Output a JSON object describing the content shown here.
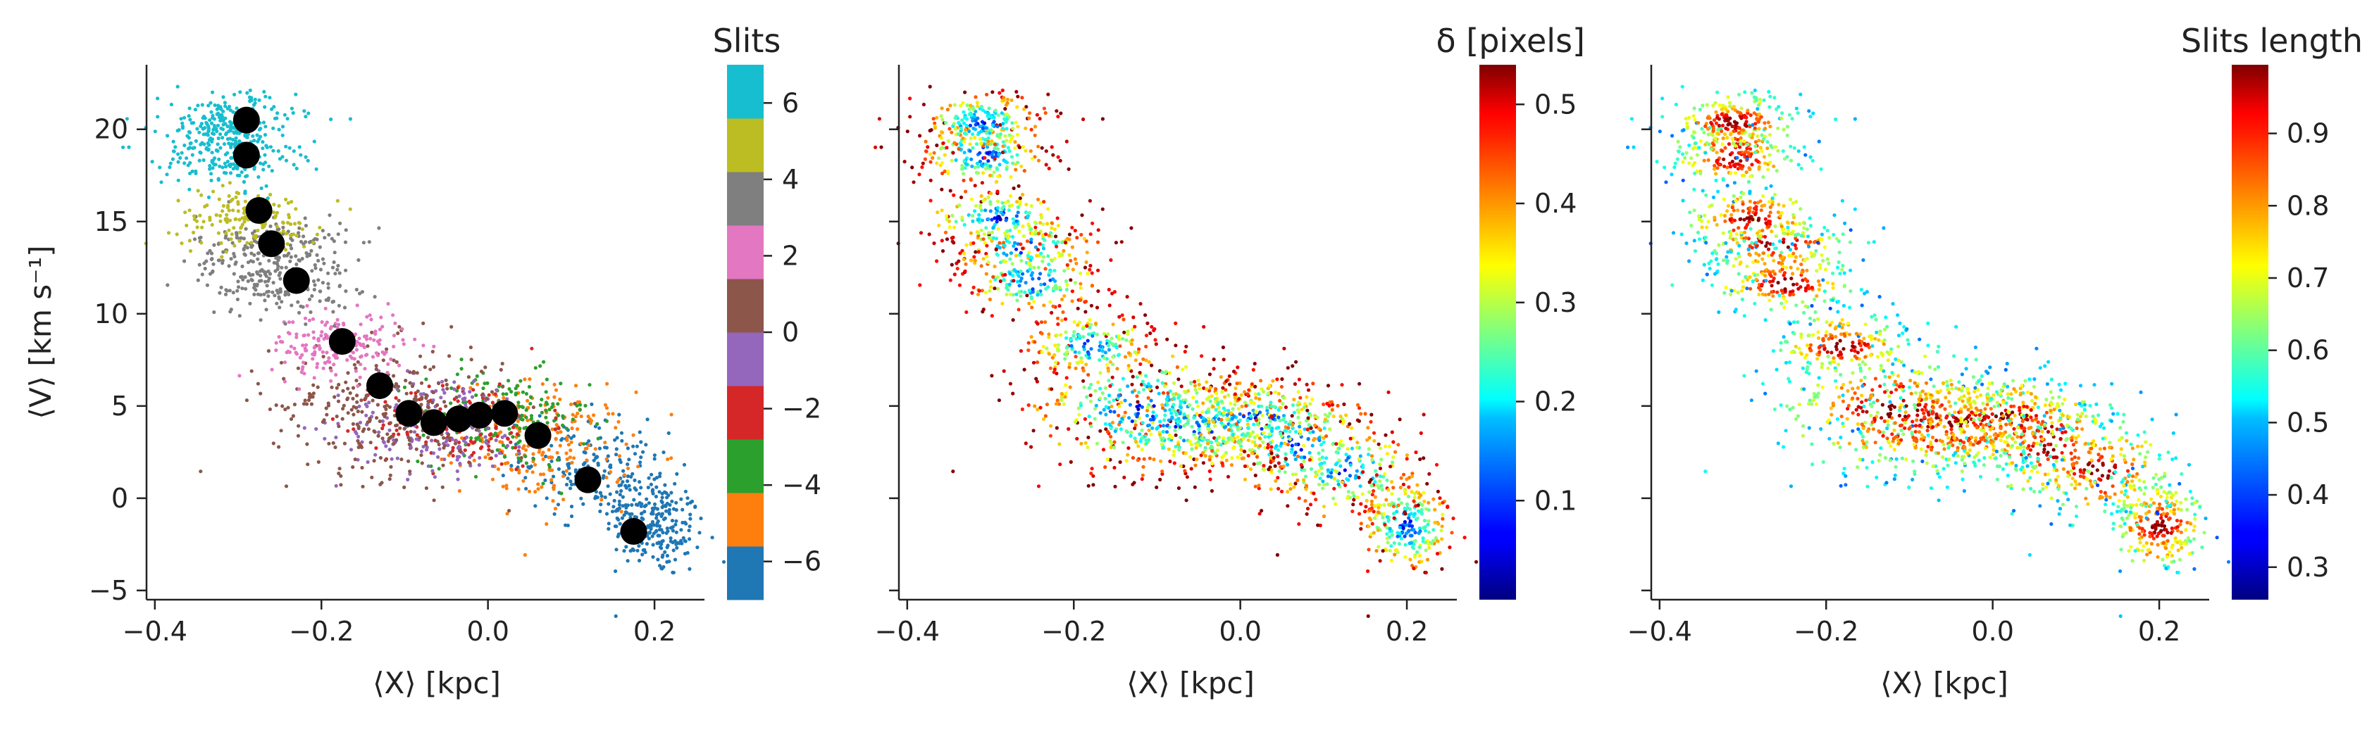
{
  "chart_data": [
    {
      "type": "scatter",
      "panel": "left",
      "xlabel": "⟨X⟩ [kpc]",
      "ylabel": "⟨V⟩ [km s⁻¹]",
      "xlim": [
        -0.41,
        0.26
      ],
      "ylim": [
        -5.5,
        23.5
      ],
      "xticks": [
        -0.4,
        -0.2,
        0.0,
        0.2
      ],
      "xtick_labels": [
        "−0.4",
        "−0.2",
        "0.0",
        "0.2"
      ],
      "yticks": [
        -5,
        0,
        5,
        10,
        15,
        20
      ],
      "ytick_labels": [
        "−5",
        "0",
        "5",
        "10",
        "15",
        "20"
      ],
      "colorbar": {
        "title": "Slits",
        "type": "discrete",
        "range": [
          -7,
          7
        ],
        "ticks": [
          -6,
          -4,
          -2,
          0,
          2,
          4,
          6
        ],
        "tick_labels": [
          "−6",
          "−4",
          "−2",
          "0",
          "2",
          "4",
          "6"
        ],
        "colors": [
          "#1f77b4",
          "#ff7f0e",
          "#2ca02c",
          "#d62728",
          "#9467bd",
          "#8c564b",
          "#e377c2",
          "#7f7f7f",
          "#bcbd22",
          "#17becf"
        ]
      },
      "clusters": [
        {
          "x": 0.2,
          "y": -1.5,
          "color": "#1f77b4",
          "n": 230,
          "sx": 0.03,
          "sy": 1.3,
          "tilt": -0.3
        },
        {
          "x": 0.13,
          "y": 1.5,
          "color": "#1f77b4",
          "n": 200,
          "sx": 0.045,
          "sy": 1.4,
          "tilt": -0.2
        },
        {
          "x": 0.07,
          "y": 3.0,
          "color": "#ff7f0e",
          "n": 220,
          "sx": 0.05,
          "sy": 1.6,
          "tilt": -0.1
        },
        {
          "x": 0.02,
          "y": 4.3,
          "color": "#2ca02c",
          "n": 200,
          "sx": 0.05,
          "sy": 1.3,
          "tilt": -0.05
        },
        {
          "x": -0.03,
          "y": 4.0,
          "color": "#d62728",
          "n": 150,
          "sx": 0.05,
          "sy": 1.2,
          "tilt": 0
        },
        {
          "x": -0.06,
          "y": 4.0,
          "color": "#9467bd",
          "n": 180,
          "sx": 0.06,
          "sy": 1.4,
          "tilt": 0
        },
        {
          "x": -0.12,
          "y": 4.8,
          "color": "#8c564b",
          "n": 320,
          "sx": 0.07,
          "sy": 1.8,
          "tilt": -0.05
        },
        {
          "x": -0.18,
          "y": 8.3,
          "color": "#e377c2",
          "n": 180,
          "sx": 0.04,
          "sy": 0.9,
          "tilt": 0
        },
        {
          "x": -0.25,
          "y": 11.8,
          "color": "#7f7f7f",
          "n": 180,
          "sx": 0.045,
          "sy": 1.0,
          "tilt": 0
        },
        {
          "x": -0.26,
          "y": 13.6,
          "color": "#7f7f7f",
          "n": 150,
          "sx": 0.045,
          "sy": 0.9,
          "tilt": 0
        },
        {
          "x": -0.29,
          "y": 15.2,
          "color": "#bcbd22",
          "n": 160,
          "sx": 0.045,
          "sy": 0.8,
          "tilt": 0
        },
        {
          "x": -0.31,
          "y": 18.6,
          "color": "#17becf",
          "n": 200,
          "sx": 0.04,
          "sy": 0.9,
          "tilt": 0
        },
        {
          "x": -0.31,
          "y": 20.4,
          "color": "#17becf",
          "n": 200,
          "sx": 0.04,
          "sy": 0.8,
          "tilt": 0
        }
      ],
      "mean_points": {
        "x": [
          -0.29,
          -0.29,
          -0.275,
          -0.26,
          -0.23,
          -0.175,
          -0.13,
          -0.095,
          -0.065,
          -0.035,
          -0.01,
          0.02,
          0.06,
          0.12,
          0.175
        ],
        "y": [
          20.5,
          18.6,
          15.6,
          13.8,
          11.8,
          8.5,
          6.1,
          4.6,
          4.1,
          4.3,
          4.5,
          4.6,
          3.4,
          1.0,
          -1.8
        ],
        "color": "#000000"
      }
    },
    {
      "type": "scatter",
      "panel": "middle",
      "xlabel": "⟨X⟩ [kpc]",
      "xlim": [
        -0.41,
        0.26
      ],
      "ylim": [
        -5.5,
        23.5
      ],
      "xticks": [
        -0.4,
        -0.2,
        0.0,
        0.2
      ],
      "xtick_labels": [
        "−0.4",
        "−0.2",
        "0.0",
        "0.2"
      ],
      "yticks": [
        -5,
        0,
        5,
        10,
        15,
        20
      ],
      "colormap": "jet",
      "colorbar": {
        "title": "δ [pixels]",
        "range": [
          0.0,
          0.54
        ],
        "ticks": [
          0.1,
          0.2,
          0.3,
          0.4,
          0.5
        ],
        "tick_labels": [
          "0.1",
          "0.2",
          "0.3",
          "0.4",
          "0.5"
        ]
      },
      "value_trend": "low δ (blue) along the central ridge, higher δ (green-yellow-red) toward edges"
    },
    {
      "type": "scatter",
      "panel": "right",
      "xlabel": "⟨X⟩ [kpc]",
      "xlim": [
        -0.41,
        0.26
      ],
      "ylim": [
        -5.5,
        23.5
      ],
      "xticks": [
        -0.4,
        -0.2,
        0.0,
        0.2
      ],
      "xtick_labels": [
        "−0.4",
        "−0.2",
        "0.0",
        "0.2"
      ],
      "yticks": [
        -5,
        0,
        5,
        10,
        15,
        20
      ],
      "colormap": "jet",
      "colorbar": {
        "title": "Slits length",
        "range": [
          0.255,
          0.995
        ],
        "ticks": [
          0.3,
          0.4,
          0.5,
          0.6,
          0.7,
          0.8,
          0.9
        ],
        "tick_labels": [
          "0.3",
          "0.4",
          "0.5",
          "0.6",
          "0.7",
          "0.8",
          "0.9"
        ]
      },
      "value_trend": "long slits (red) in diagonal streaks, shorter (yellow-cyan) toward edges"
    }
  ]
}
